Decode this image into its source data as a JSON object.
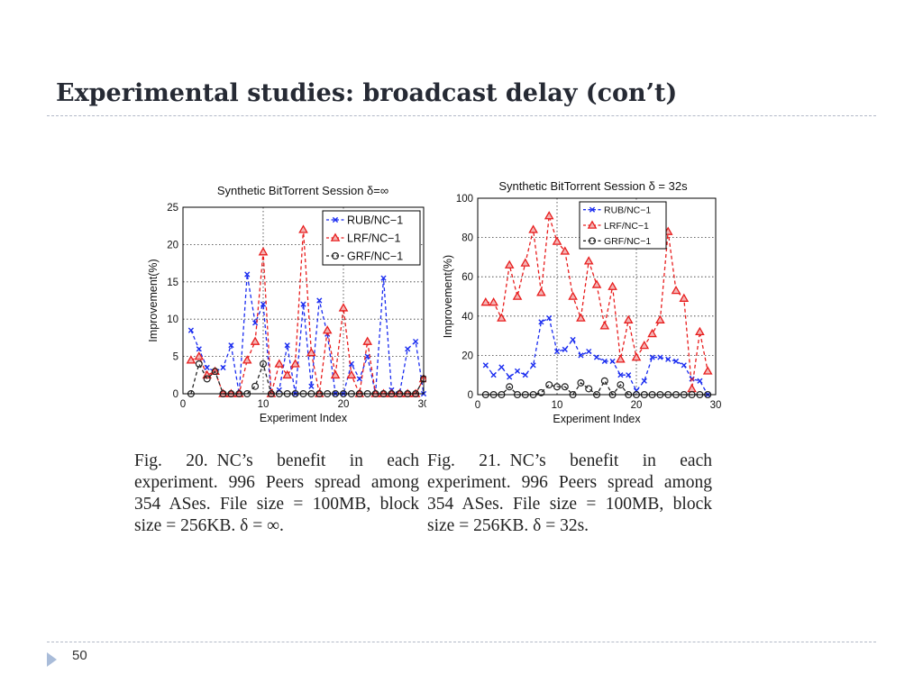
{
  "slide": {
    "title": "Experimental studies: broadcast delay (con’t)",
    "page_number": "50"
  },
  "colors": {
    "title": "#262a34",
    "rule": "#b3b9c7",
    "marker": "#a9bcd9",
    "rub": "#1a2cf0",
    "lrf": "#e81d1d",
    "grf": "#222222"
  },
  "captions": [
    {
      "figure": "Fig. 20.",
      "text": "NC’s benefit in each experiment. 996 Peers spread among 354 ASes. File size = 100MB, block size = 256KB. δ = ∞."
    },
    {
      "figure": "Fig. 21.",
      "text": "NC’s benefit in each experiment. 996 Peers spread among 354 ASes. File size = 100MB, block size = 256KB. δ = 32s."
    }
  ],
  "chart_data": [
    {
      "type": "line",
      "title": "Synthetic BitTorrent Session δ=∞",
      "xlabel": "Experiment Index",
      "ylabel": "Improvement(%)",
      "xlim": [
        0,
        30
      ],
      "ylim": [
        0,
        25
      ],
      "xticks": [
        "0",
        "10",
        "20",
        "30"
      ],
      "yticks": [
        "0",
        "5",
        "10",
        "15",
        "20",
        "25"
      ],
      "grid": true,
      "legend_position": "top-right",
      "x": [
        1,
        2,
        3,
        4,
        5,
        6,
        7,
        8,
        9,
        10,
        11,
        12,
        13,
        14,
        15,
        16,
        17,
        18,
        19,
        20,
        21,
        22,
        23,
        24,
        25,
        26,
        27,
        28,
        29,
        30
      ],
      "series": [
        {
          "name": "RUB/NC−1",
          "marker": "x",
          "color": "#1a2cf0",
          "values": [
            8.5,
            6,
            3.5,
            3,
            3.5,
            6.5,
            0,
            16,
            9.5,
            12,
            0,
            0.5,
            6.5,
            0,
            12,
            1,
            12.5,
            8,
            0,
            0,
            4,
            2,
            5,
            0,
            15.5,
            0.5,
            0,
            6,
            7,
            0
          ]
        },
        {
          "name": "LRF/NC−1",
          "marker": "triangle",
          "color": "#e81d1d",
          "values": [
            4.5,
            5,
            2.5,
            3,
            0,
            0,
            0,
            4.5,
            7,
            19,
            0,
            4,
            2.5,
            4,
            22,
            5.5,
            0,
            8.5,
            2.5,
            11.5,
            2.5,
            0,
            7,
            0,
            0,
            0,
            0,
            0,
            0,
            2
          ]
        },
        {
          "name": "GRF/NC−1",
          "marker": "circle",
          "color": "#222222",
          "values": [
            0,
            4,
            2,
            3,
            0,
            0,
            0,
            0,
            1,
            4,
            0,
            0,
            0,
            0,
            0,
            0,
            0,
            0,
            0,
            0,
            0,
            0,
            0,
            0,
            0,
            0,
            0,
            0,
            0,
            2
          ]
        }
      ]
    },
    {
      "type": "line",
      "title": "Synthetic BitTorrent Session δ = 32s",
      "xlabel": "Experiment Index",
      "ylabel": "Improvement(%)",
      "xlim": [
        0,
        30
      ],
      "ylim": [
        0,
        100
      ],
      "xticks": [
        "0",
        "10",
        "20",
        "30"
      ],
      "yticks": [
        "0",
        "20",
        "40",
        "60",
        "80",
        "100"
      ],
      "grid": true,
      "legend_position": "top-right",
      "x": [
        1,
        2,
        3,
        4,
        5,
        6,
        7,
        8,
        9,
        10,
        11,
        12,
        13,
        14,
        15,
        16,
        17,
        18,
        19,
        20,
        21,
        22,
        23,
        24,
        25,
        26,
        27,
        28,
        29
      ],
      "series": [
        {
          "name": "RUB/NC−1",
          "marker": "x",
          "color": "#1a2cf0",
          "values": [
            15,
            10,
            14,
            9,
            12,
            10,
            15,
            37,
            39,
            22,
            23,
            28,
            20,
            22,
            19,
            17,
            17,
            10,
            10,
            2,
            7,
            19,
            19,
            18,
            17,
            15,
            8,
            7,
            0
          ]
        },
        {
          "name": "LRF/NC−1",
          "marker": "triangle",
          "color": "#e81d1d",
          "values": [
            47,
            47,
            39,
            66,
            50,
            67,
            84,
            52,
            91,
            78,
            73,
            50,
            39,
            68,
            56,
            35,
            55,
            18,
            38,
            19,
            25,
            31,
            38,
            83,
            53,
            49,
            3,
            32,
            12
          ]
        },
        {
          "name": "GRF/NC−1",
          "marker": "circle",
          "color": "#222222",
          "values": [
            0,
            0,
            0,
            4,
            0,
            0,
            0,
            1,
            5,
            4,
            4,
            0,
            6,
            3,
            0,
            7,
            0,
            5,
            0,
            0,
            0,
            0,
            0,
            0,
            0,
            0,
            0,
            0,
            0
          ]
        }
      ]
    }
  ]
}
